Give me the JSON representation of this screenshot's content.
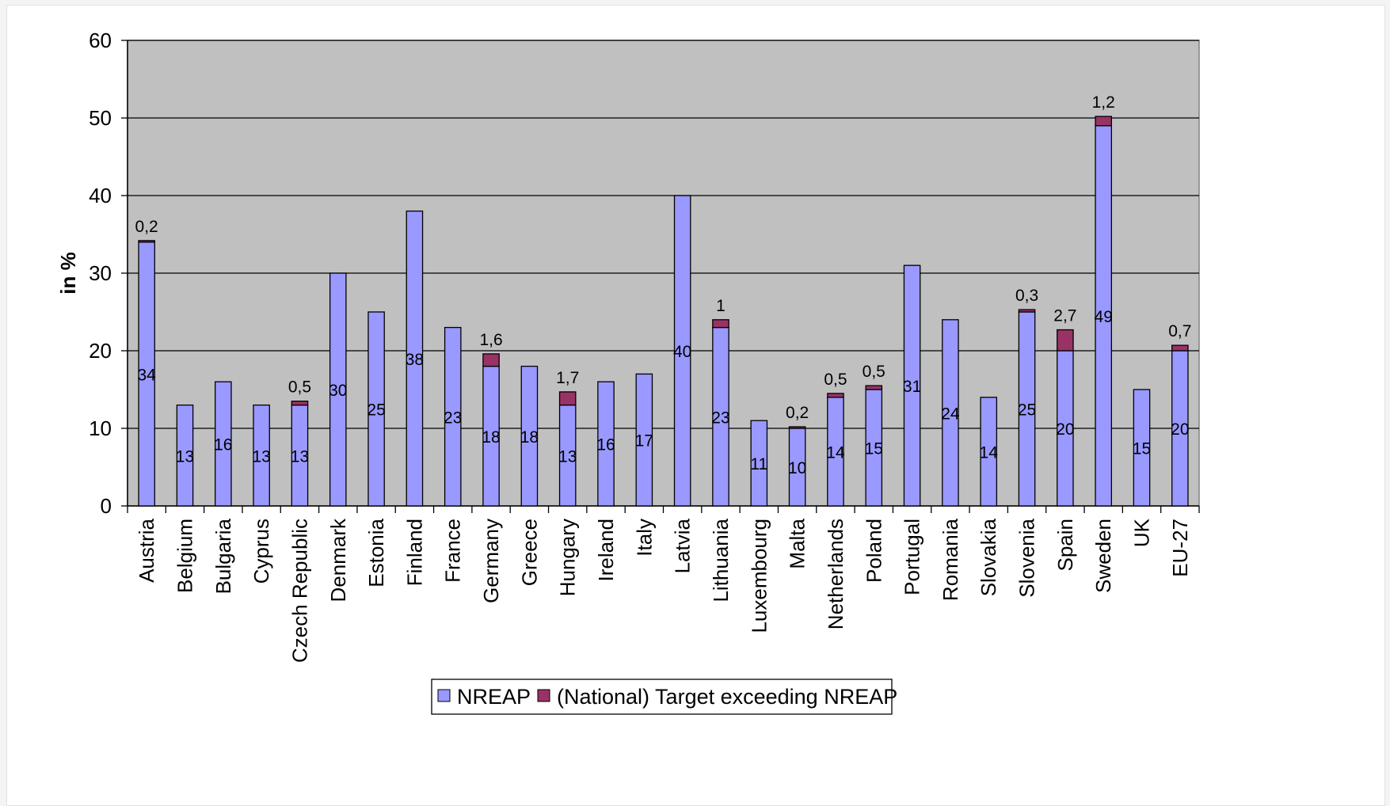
{
  "chart_data": {
    "type": "bar",
    "stacked": true,
    "ylabel": "in %",
    "xlabel": "",
    "title": "",
    "ylim": [
      0,
      60
    ],
    "yticks": [
      "0",
      "10",
      "20",
      "30",
      "40",
      "50",
      "60"
    ],
    "grid": true,
    "legend_position": "bottom",
    "categories": [
      "Austria",
      "Belgium",
      "Bulgaria",
      "Cyprus",
      "Czech Republic",
      "Denmark",
      "Estonia",
      "Finland",
      "France",
      "Germany",
      "Greece",
      "Hungary",
      "Ireland",
      "Italy",
      "Latvia",
      "Lithuania",
      "Luxembourg",
      "Malta",
      "Netherlands",
      "Poland",
      "Portugal",
      "Romania",
      "Slovakia",
      "Slovenia",
      "Spain",
      "Sweden",
      "UK",
      "EU-27"
    ],
    "series": [
      {
        "name": "NREAP",
        "color": "#9999ff",
        "values": [
          34,
          13,
          16,
          13,
          13,
          30,
          25,
          38,
          23,
          18,
          18,
          13,
          16,
          17,
          40,
          23,
          11,
          10,
          14,
          15,
          31,
          24,
          14,
          25,
          20,
          49,
          15,
          20
        ],
        "labels": [
          "34",
          "13",
          "16",
          "13",
          "13",
          "30",
          "25",
          "38",
          "23",
          "18",
          "18",
          "13",
          "16",
          "17",
          "40",
          "23",
          "11",
          "10",
          "14",
          "15",
          "31",
          "24",
          "14",
          "25",
          "20",
          "49",
          "15",
          "20"
        ]
      },
      {
        "name": "(National) Target exceeding NREAP",
        "color": "#993366",
        "values": [
          0.2,
          0,
          0,
          0,
          0.5,
          0,
          0,
          0,
          0,
          1.6,
          0,
          1.7,
          0,
          0,
          0,
          1,
          0,
          0.2,
          0.5,
          0.5,
          0,
          0,
          0,
          0.3,
          2.7,
          1.2,
          0,
          0.7
        ],
        "labels": [
          "0,2",
          "",
          "",
          "",
          "0,5",
          "",
          "",
          "",
          "",
          "1,6",
          "",
          "1,7",
          "",
          "",
          "",
          "1",
          "",
          "0,2",
          "0,5",
          "0,5",
          "",
          "",
          "",
          "0,3",
          "2,7",
          "1,2",
          "",
          "0,7"
        ]
      }
    ]
  }
}
